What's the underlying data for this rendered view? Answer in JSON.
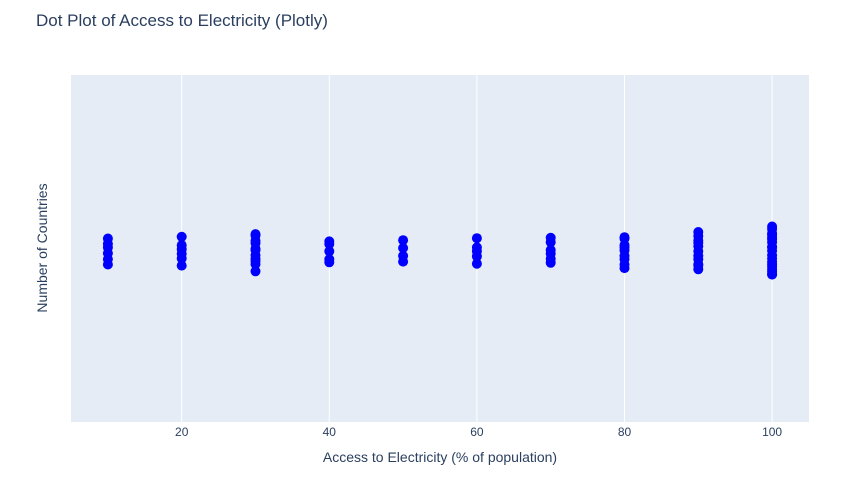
{
  "chart_data": {
    "type": "scatter",
    "title": "Dot Plot of Access to Electricity (Plotly)",
    "xlabel": "Access to Electricity (% of population)",
    "ylabel": "Number of Countries",
    "xlim": [
      5,
      105
    ],
    "x_ticks": [
      20,
      40,
      60,
      80,
      100
    ],
    "x_tick_labels": [
      "20",
      "40",
      "60",
      "80",
      "100"
    ],
    "grid": "vertical",
    "marker_color": "#0000ff",
    "plot_bg": "#e5ecf6",
    "grid_color": "#ffffff",
    "points": [
      {
        "x": 10,
        "count": 6
      },
      {
        "x": 20,
        "count": 6
      },
      {
        "x": 30,
        "count": 11
      },
      {
        "x": 40,
        "count": 5
      },
      {
        "x": 50,
        "count": 4
      },
      {
        "x": 60,
        "count": 5
      },
      {
        "x": 70,
        "count": 6
      },
      {
        "x": 80,
        "count": 9
      },
      {
        "x": 90,
        "count": 11
      },
      {
        "x": 100,
        "count": 19
      }
    ]
  }
}
